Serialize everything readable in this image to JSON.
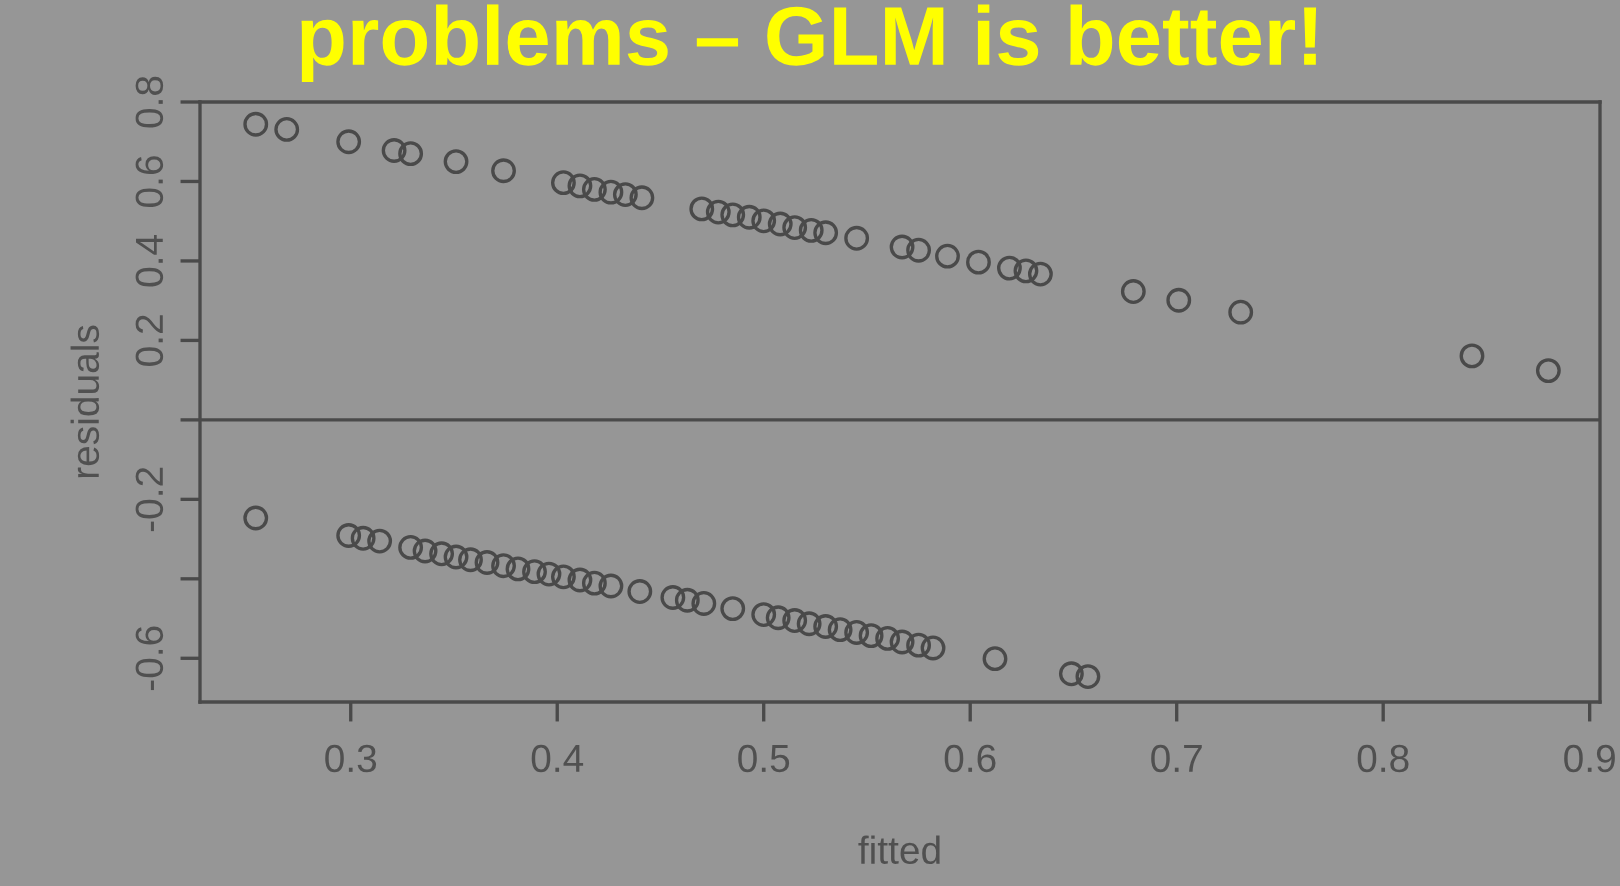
{
  "chart_data": {
    "type": "scatter",
    "title": "problems – GLM is better!",
    "xlabel": "fitted",
    "ylabel": "residuals",
    "series": [
      {
        "color": "#4a4a4a",
        "x": [
          0.254,
          0.269,
          0.299,
          0.321,
          0.329,
          0.351,
          0.374,
          0.403,
          0.411,
          0.418,
          0.426,
          0.433,
          0.441,
          0.47,
          0.478,
          0.485,
          0.493,
          0.5,
          0.508,
          0.515,
          0.523,
          0.53,
          0.545,
          0.567,
          0.575,
          0.589,
          0.604,
          0.619,
          0.627,
          0.634,
          0.679,
          0.701,
          0.731,
          0.843,
          0.88,
          0.254,
          0.299,
          0.306,
          0.314,
          0.329,
          0.336,
          0.344,
          0.351,
          0.358,
          0.366,
          0.374,
          0.381,
          0.389,
          0.396,
          0.403,
          0.411,
          0.418,
          0.426,
          0.44,
          0.456,
          0.463,
          0.471,
          0.485,
          0.5,
          0.507,
          0.515,
          0.522,
          0.53,
          0.537,
          0.545,
          0.552,
          0.56,
          0.567,
          0.575,
          0.582,
          0.612,
          0.649,
          0.657
        ],
        "values": [
          0.744,
          0.731,
          0.7,
          0.678,
          0.67,
          0.65,
          0.627,
          0.597,
          0.589,
          0.58,
          0.573,
          0.567,
          0.559,
          0.531,
          0.523,
          0.516,
          0.51,
          0.501,
          0.493,
          0.484,
          0.477,
          0.471,
          0.457,
          0.435,
          0.427,
          0.412,
          0.397,
          0.382,
          0.375,
          0.367,
          0.323,
          0.301,
          0.271,
          0.161,
          0.124,
          -0.247,
          -0.291,
          -0.298,
          -0.305,
          -0.321,
          -0.33,
          -0.337,
          -0.345,
          -0.352,
          -0.359,
          -0.367,
          -0.375,
          -0.382,
          -0.388,
          -0.395,
          -0.403,
          -0.411,
          -0.418,
          -0.432,
          -0.447,
          -0.454,
          -0.462,
          -0.475,
          -0.49,
          -0.498,
          -0.505,
          -0.513,
          -0.52,
          -0.528,
          -0.535,
          -0.543,
          -0.55,
          -0.559,
          -0.567,
          -0.574,
          -0.601,
          -0.639,
          -0.646
        ]
      }
    ],
    "xlim": [
      0.227,
      0.905
    ],
    "xticks": [
      0.3,
      0.4,
      0.5,
      0.6,
      0.7,
      0.8,
      0.9
    ],
    "ylim": [
      -0.71,
      0.8
    ],
    "yticks": [
      {
        "value": -0.6,
        "label": "-0.6"
      },
      {
        "value": -0.4,
        "label": null
      },
      {
        "value": -0.2,
        "label": "-0.2"
      },
      {
        "value": 0.0,
        "label": null
      },
      0.2,
      0.4,
      0.6,
      0.8
    ],
    "ref_lines": [
      {
        "axis": "y",
        "value": 0,
        "color": "#4a4a4a"
      }
    ],
    "marker": "circle",
    "grid": false
  }
}
